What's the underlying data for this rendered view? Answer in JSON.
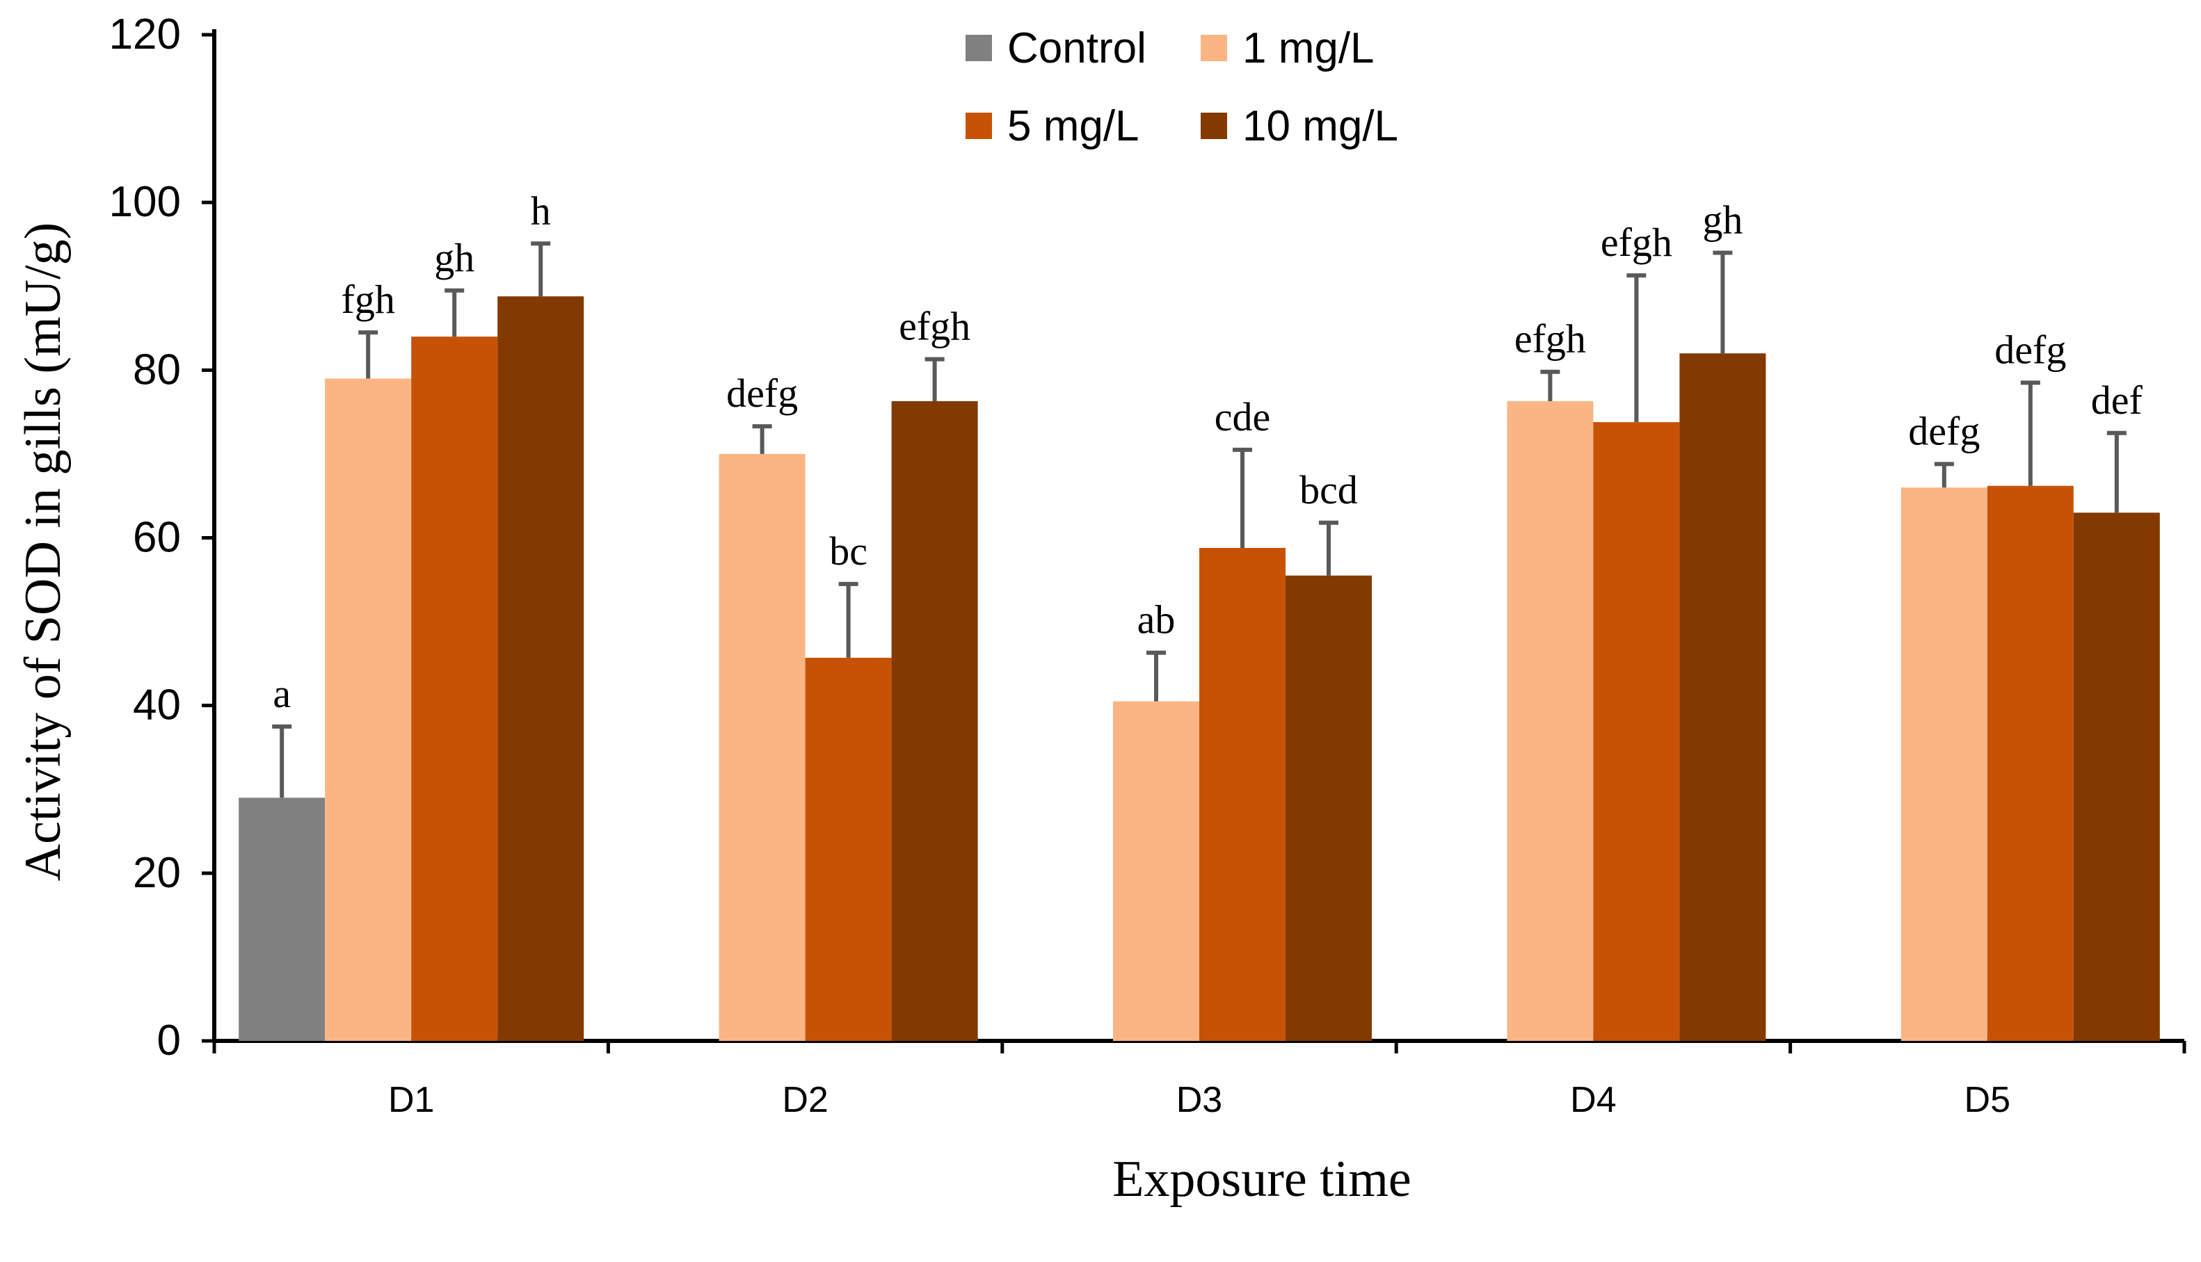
{
  "chart_data": {
    "type": "bar",
    "title": "",
    "xlabel": "Exposure time",
    "ylabel": "Activity of SOD in gills (mU/g)",
    "ylim": [
      0,
      120
    ],
    "yticks": [
      0,
      20,
      40,
      60,
      80,
      100,
      120
    ],
    "grid": false,
    "legend_position": "top-center",
    "categories": [
      "D1",
      "D2",
      "D3",
      "D4",
      "D5"
    ],
    "series": [
      {
        "name": "Control",
        "color": "#808080",
        "values": [
          29,
          null,
          null,
          null,
          null
        ],
        "errors": [
          8.5,
          null,
          null,
          null,
          null
        ],
        "labels": [
          "a",
          null,
          null,
          null,
          null
        ]
      },
      {
        "name": "1 mg/L",
        "color": "#FBB584",
        "values": [
          79,
          70,
          40.5,
          76.3,
          66
        ],
        "errors": [
          5.5,
          3.3,
          5.8,
          3.5,
          2.8
        ],
        "labels": [
          "fgh",
          "defg",
          "ab",
          "efgh",
          "defg"
        ]
      },
      {
        "name": "5 mg/L",
        "color": "#C65305",
        "values": [
          84,
          45.7,
          58.8,
          73.8,
          66.2
        ],
        "errors": [
          5.5,
          8.8,
          11.7,
          17.5,
          12.3
        ],
        "labels": [
          "gh",
          "bc",
          "cde",
          "efgh",
          "defg"
        ]
      },
      {
        "name": "10 mg/L",
        "color": "#833A00",
        "values": [
          88.8,
          76.3,
          55.5,
          82,
          63
        ],
        "errors": [
          6.3,
          5,
          6.3,
          12,
          9.5
        ],
        "labels": [
          "h",
          "efgh",
          "bcd",
          "gh",
          "def"
        ]
      }
    ]
  }
}
